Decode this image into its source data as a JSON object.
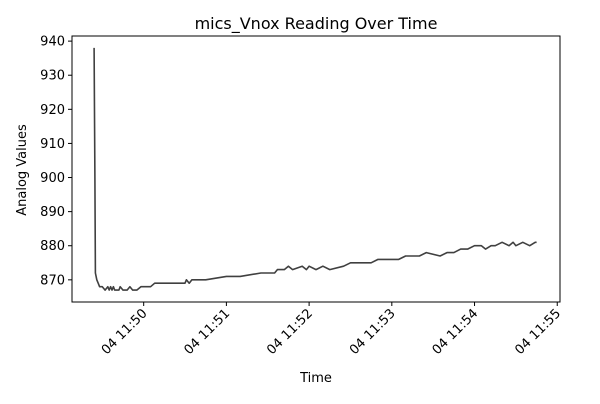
{
  "chart_data": {
    "type": "line",
    "title": "mics_Vnox Reading Over Time",
    "xlabel": "Time",
    "ylabel": "Analog Values",
    "x_unit": "time (HH:MM:SS)",
    "xlim": [
      "11:49:08",
      "11:55:02"
    ],
    "ylim": [
      863.5,
      941.5
    ],
    "x_ticks": [
      {
        "value": "11:50:00",
        "label": "04 11:50"
      },
      {
        "value": "11:51:00",
        "label": "04 11:51"
      },
      {
        "value": "11:52:00",
        "label": "04 11:52"
      },
      {
        "value": "11:53:00",
        "label": "04 11:53"
      },
      {
        "value": "11:54:00",
        "label": "04 11:54"
      },
      {
        "value": "11:55:00",
        "label": "04 11:55"
      }
    ],
    "y_ticks": [
      870,
      880,
      890,
      900,
      910,
      920,
      930,
      940
    ],
    "grid": false,
    "line_color": "#404040",
    "series": [
      {
        "x": [
          "11:49:24",
          "11:49:24.6",
          "11:49:25",
          "11:49:26",
          "11:49:27",
          "11:49:28",
          "11:49:30",
          "11:49:32",
          "11:49:34",
          "11:49:35",
          "11:49:36",
          "11:49:37",
          "11:49:38",
          "11:49:39",
          "11:49:40",
          "11:49:42",
          "11:49:43",
          "11:49:45",
          "11:49:48",
          "11:49:50",
          "11:49:52",
          "11:49:55",
          "11:49:58",
          "11:50:02",
          "11:50:05",
          "11:50:08",
          "11:50:12",
          "11:50:15",
          "11:50:30",
          "11:50:31",
          "11:50:33",
          "11:50:35",
          "11:50:45",
          "11:51:00",
          "11:51:10",
          "11:51:25",
          "11:51:30",
          "11:51:35",
          "11:51:37",
          "11:51:40",
          "11:51:42",
          "11:51:45",
          "11:51:48",
          "11:51:55",
          "11:51:58",
          "11:52:00",
          "11:52:05",
          "11:52:10",
          "11:52:15",
          "11:52:25",
          "11:52:30",
          "11:52:35",
          "11:52:40",
          "11:52:45",
          "11:52:50",
          "11:52:55",
          "11:53:05",
          "11:53:10",
          "11:53:20",
          "11:53:25",
          "11:53:35",
          "11:53:40",
          "11:53:45",
          "11:53:50",
          "11:53:52",
          "11:53:55",
          "11:54:00",
          "11:54:05",
          "11:54:08",
          "11:54:12",
          "11:54:15",
          "11:54:20",
          "11:54:25",
          "11:54:28",
          "11:54:30",
          "11:54:35",
          "11:54:40",
          "11:54:44",
          "11:54:45"
        ],
        "y": [
          938,
          900,
          872,
          870,
          869,
          868,
          868,
          867,
          868,
          867,
          868,
          867,
          868,
          867,
          867,
          867,
          868,
          867,
          867,
          868,
          867,
          867,
          868,
          868,
          868,
          869,
          869,
          869,
          869,
          870,
          869,
          870,
          870,
          871,
          871,
          872,
          872,
          872,
          873,
          873,
          873,
          874,
          873,
          874,
          873,
          874,
          873,
          874,
          873,
          874,
          875,
          875,
          875,
          875,
          876,
          876,
          876,
          877,
          877,
          878,
          877,
          878,
          878,
          879,
          879,
          879,
          880,
          880,
          879,
          880,
          880,
          881,
          880,
          881,
          880,
          881,
          880,
          881,
          881
        ]
      }
    ]
  }
}
